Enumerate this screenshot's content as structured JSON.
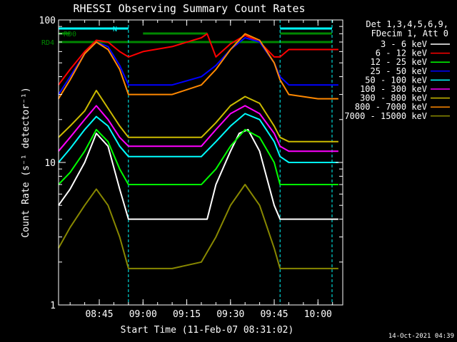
{
  "chart_data": {
    "type": "line",
    "title": "RHESSI Observing Summary Count Rates",
    "xlabel": "Start Time (11-Feb-07 08:31:02)",
    "ylabel": "Count Rate (s⁻¹ detector⁻¹)",
    "yscale": "log",
    "ylim": [
      1,
      100
    ],
    "xlim": [
      "08:31:02",
      "10:08:30"
    ],
    "x_ticks": [
      "08:45",
      "09:00",
      "09:15",
      "09:30",
      "09:45",
      "10:00"
    ],
    "y_ticks": [
      "1",
      "10",
      "100"
    ],
    "legend_header": [
      "Det 1,3,4,5,6,9,",
      "FDecim 1, Att 0"
    ],
    "legend_position": "right",
    "timestamp": "14-Oct-2021 04:39",
    "flag_labels": {
      "rd0": "RD0",
      "rd4": "RD4",
      "n": "N"
    },
    "colors": {
      "background": "#000000",
      "axes": "#ffffff",
      "cyan": "#00ffff",
      "green_flag": "#008800"
    },
    "series": [
      {
        "name": "3 - 6 keV",
        "color": "#000000",
        "x": [
          "08:31",
          "08:35",
          "08:40",
          "08:44",
          "08:48",
          "08:52",
          "08:55",
          "09:00",
          "09:10",
          "09:22",
          "09:25",
          "09:30",
          "09:33",
          "09:36",
          "09:40",
          "09:45",
          "09:47",
          "09:50",
          "10:00",
          "10:07"
        ],
        "y": [
          5,
          6.5,
          10,
          16,
          13,
          6.5,
          4,
          4,
          4,
          4,
          7,
          12,
          16,
          17,
          12,
          5,
          4,
          4,
          4,
          4
        ]
      },
      {
        "name": "6 - 12 keV",
        "color": "#ff0000",
        "x": [
          "08:31",
          "08:35",
          "08:40",
          "08:44",
          "08:48",
          "08:52",
          "08:55",
          "09:00",
          "09:10",
          "09:20",
          "09:22",
          "09:25",
          "09:30",
          "09:35",
          "09:40",
          "09:45",
          "09:47",
          "09:50",
          "10:00",
          "10:07"
        ],
        "y": [
          35,
          45,
          60,
          72,
          70,
          60,
          55,
          60,
          65,
          75,
          80,
          55,
          68,
          78,
          70,
          55,
          55,
          62,
          62,
          62
        ]
      },
      {
        "name": "12 - 25 keV",
        "color": "#00ff00",
        "x": [
          "08:31",
          "08:35",
          "08:40",
          "08:44",
          "08:48",
          "08:52",
          "08:55",
          "09:00",
          "09:10",
          "09:20",
          "09:25",
          "09:30",
          "09:35",
          "09:40",
          "09:45",
          "09:47",
          "09:50",
          "10:00",
          "10:07"
        ],
        "y": [
          7,
          8.5,
          12,
          17,
          14,
          9,
          7,
          7,
          7,
          7,
          9,
          13,
          17,
          15,
          10,
          7,
          7,
          7,
          7
        ]
      },
      {
        "name": "25 - 50 keV",
        "color": "#0000ff",
        "x": [
          "08:31",
          "08:35",
          "08:40",
          "08:44",
          "08:48",
          "08:52",
          "08:55",
          "09:00",
          "09:10",
          "09:20",
          "09:25",
          "09:30",
          "09:35",
          "09:40",
          "09:45",
          "09:47",
          "09:50",
          "10:00",
          "10:07"
        ],
        "y": [
          30,
          40,
          58,
          70,
          65,
          48,
          35,
          35,
          35,
          40,
          48,
          62,
          75,
          70,
          50,
          40,
          35,
          35,
          35
        ]
      },
      {
        "name": "50 - 100 keV",
        "color": "#00ffff",
        "x": [
          "08:31",
          "08:35",
          "08:40",
          "08:44",
          "08:48",
          "08:52",
          "08:55",
          "09:00",
          "09:10",
          "09:20",
          "09:25",
          "09:30",
          "09:35",
          "09:40",
          "09:45",
          "09:47",
          "09:50",
          "10:00",
          "10:07"
        ],
        "y": [
          10,
          12.5,
          17,
          21,
          18,
          13,
          11,
          11,
          11,
          11,
          14,
          18,
          22,
          20,
          14,
          11,
          10,
          10,
          10
        ]
      },
      {
        "name": "100 - 300 keV",
        "color": "#ff00ff",
        "x": [
          "08:31",
          "08:35",
          "08:40",
          "08:44",
          "08:48",
          "08:52",
          "08:55",
          "09:00",
          "09:10",
          "09:20",
          "09:25",
          "09:30",
          "09:35",
          "09:40",
          "09:45",
          "09:47",
          "09:50",
          "10:00",
          "10:07"
        ],
        "y": [
          12,
          15,
          20,
          25,
          20,
          15,
          13,
          13,
          13,
          13,
          17,
          22,
          25,
          22,
          16,
          13,
          12,
          12,
          12
        ]
      },
      {
        "name": "300 - 800 keV",
        "color": "#ccbb00",
        "x": [
          "08:31",
          "08:35",
          "08:40",
          "08:44",
          "08:48",
          "08:52",
          "08:55",
          "09:00",
          "09:10",
          "09:20",
          "09:25",
          "09:30",
          "09:35",
          "09:40",
          "09:45",
          "09:47",
          "09:50",
          "10:00",
          "10:07"
        ],
        "y": [
          15,
          18,
          23,
          32,
          24,
          18,
          15,
          15,
          15,
          15,
          19,
          25,
          29,
          26,
          18,
          15,
          14,
          14,
          14
        ]
      },
      {
        "name": "800 - 7000 keV",
        "color": "#ff8800",
        "x": [
          "08:31",
          "08:35",
          "08:40",
          "08:44",
          "08:48",
          "08:52",
          "08:55",
          "09:00",
          "09:10",
          "09:20",
          "09:25",
          "09:30",
          "09:35",
          "09:40",
          "09:45",
          "09:47",
          "09:50",
          "10:00",
          "10:07"
        ],
        "y": [
          28,
          38,
          58,
          70,
          62,
          45,
          30,
          30,
          30,
          35,
          45,
          62,
          80,
          72,
          50,
          38,
          30,
          28,
          28
        ]
      },
      {
        "name": "7000 - 15000 keV",
        "color": "#888800",
        "x": [
          "08:31",
          "08:35",
          "08:40",
          "08:44",
          "08:48",
          "08:52",
          "08:55",
          "09:00",
          "09:10",
          "09:20",
          "09:25",
          "09:30",
          "09:35",
          "09:40",
          "09:45",
          "09:47",
          "09:50",
          "10:00",
          "10:07"
        ],
        "y": [
          2.5,
          3.5,
          5,
          6.5,
          5,
          3,
          1.8,
          1.8,
          1.8,
          2,
          3,
          5,
          7,
          5,
          2.5,
          1.8,
          1.8,
          1.8,
          1.8
        ]
      }
    ]
  }
}
